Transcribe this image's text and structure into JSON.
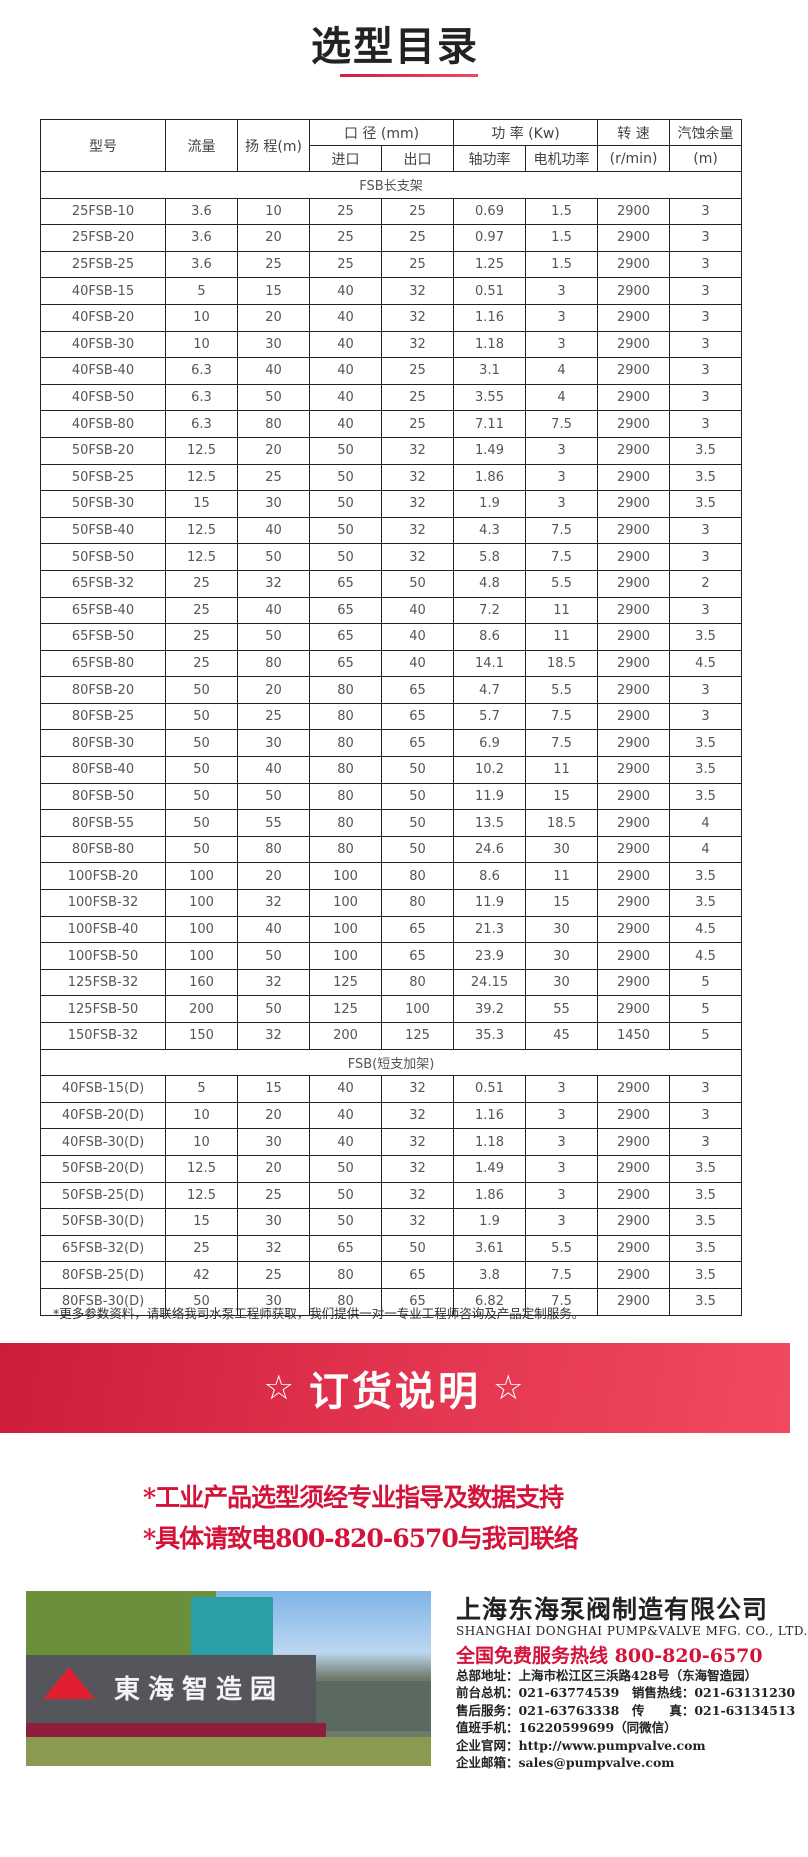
{
  "title": "选型目录",
  "table": {
    "headers": {
      "model": "型号",
      "flow": "流量",
      "head": "扬 程(m)",
      "diameter": "口 径 (mm)",
      "power": "功 率 (Kw)",
      "speed": "转 速",
      "npsh": "汽蚀余量",
      "inlet": "进口",
      "outlet": "出口",
      "shaft": "轴功率",
      "motor": "电机功率",
      "speed_unit": "(r/min)",
      "npsh_unit": "(m)"
    },
    "groups": [
      {
        "name": "FSB长支架",
        "rows": [
          [
            "25FSB-10",
            "3.6",
            "10",
            "25",
            "25",
            "0.69",
            "1.5",
            "2900",
            "3"
          ],
          [
            "25FSB-20",
            "3.6",
            "20",
            "25",
            "25",
            "0.97",
            "1.5",
            "2900",
            "3"
          ],
          [
            "25FSB-25",
            "3.6",
            "25",
            "25",
            "25",
            "1.25",
            "1.5",
            "2900",
            "3"
          ],
          [
            "40FSB-15",
            "5",
            "15",
            "40",
            "32",
            "0.51",
            "3",
            "2900",
            "3"
          ],
          [
            "40FSB-20",
            "10",
            "20",
            "40",
            "32",
            "1.16",
            "3",
            "2900",
            "3"
          ],
          [
            "40FSB-30",
            "10",
            "30",
            "40",
            "32",
            "1.18",
            "3",
            "2900",
            "3"
          ],
          [
            "40FSB-40",
            "6.3",
            "40",
            "40",
            "25",
            "3.1",
            "4",
            "2900",
            "3"
          ],
          [
            "40FSB-50",
            "6.3",
            "50",
            "40",
            "25",
            "3.55",
            "4",
            "2900",
            "3"
          ],
          [
            "40FSB-80",
            "6.3",
            "80",
            "40",
            "25",
            "7.11",
            "7.5",
            "2900",
            "3"
          ],
          [
            "50FSB-20",
            "12.5",
            "20",
            "50",
            "32",
            "1.49",
            "3",
            "2900",
            "3.5"
          ],
          [
            "50FSB-25",
            "12.5",
            "25",
            "50",
            "32",
            "1.86",
            "3",
            "2900",
            "3.5"
          ],
          [
            "50FSB-30",
            "15",
            "30",
            "50",
            "32",
            "1.9",
            "3",
            "2900",
            "3.5"
          ],
          [
            "50FSB-40",
            "12.5",
            "40",
            "50",
            "32",
            "4.3",
            "7.5",
            "2900",
            "3"
          ],
          [
            "50FSB-50",
            "12.5",
            "50",
            "50",
            "32",
            "5.8",
            "7.5",
            "2900",
            "3"
          ],
          [
            "65FSB-32",
            "25",
            "32",
            "65",
            "50",
            "4.8",
            "5.5",
            "2900",
            "2"
          ],
          [
            "65FSB-40",
            "25",
            "40",
            "65",
            "40",
            "7.2",
            "11",
            "2900",
            "3"
          ],
          [
            "65FSB-50",
            "25",
            "50",
            "65",
            "40",
            "8.6",
            "11",
            "2900",
            "3.5"
          ],
          [
            "65FSB-80",
            "25",
            "80",
            "65",
            "40",
            "14.1",
            "18.5",
            "2900",
            "4.5"
          ],
          [
            "80FSB-20",
            "50",
            "20",
            "80",
            "65",
            "4.7",
            "5.5",
            "2900",
            "3"
          ],
          [
            "80FSB-25",
            "50",
            "25",
            "80",
            "65",
            "5.7",
            "7.5",
            "2900",
            "3"
          ],
          [
            "80FSB-30",
            "50",
            "30",
            "80",
            "65",
            "6.9",
            "7.5",
            "2900",
            "3.5"
          ],
          [
            "80FSB-40",
            "50",
            "40",
            "80",
            "50",
            "10.2",
            "11",
            "2900",
            "3.5"
          ],
          [
            "80FSB-50",
            "50",
            "50",
            "80",
            "50",
            "11.9",
            "15",
            "2900",
            "3.5"
          ],
          [
            "80FSB-55",
            "50",
            "55",
            "80",
            "50",
            "13.5",
            "18.5",
            "2900",
            "4"
          ],
          [
            "80FSB-80",
            "50",
            "80",
            "80",
            "50",
            "24.6",
            "30",
            "2900",
            "4"
          ],
          [
            "100FSB-20",
            "100",
            "20",
            "100",
            "80",
            "8.6",
            "11",
            "2900",
            "3.5"
          ],
          [
            "100FSB-32",
            "100",
            "32",
            "100",
            "80",
            "11.9",
            "15",
            "2900",
            "3.5"
          ],
          [
            "100FSB-40",
            "100",
            "40",
            "100",
            "65",
            "21.3",
            "30",
            "2900",
            "4.5"
          ],
          [
            "100FSB-50",
            "100",
            "50",
            "100",
            "65",
            "23.9",
            "30",
            "2900",
            "4.5"
          ],
          [
            "125FSB-32",
            "160",
            "32",
            "125",
            "80",
            "24.15",
            "30",
            "2900",
            "5"
          ],
          [
            "125FSB-50",
            "200",
            "50",
            "125",
            "100",
            "39.2",
            "55",
            "2900",
            "5"
          ],
          [
            "150FSB-32",
            "150",
            "32",
            "200",
            "125",
            "35.3",
            "45",
            "1450",
            "5"
          ]
        ]
      },
      {
        "name": "FSB(短支加架)",
        "rows": [
          [
            "40FSB-15(D)",
            "5",
            "15",
            "40",
            "32",
            "0.51",
            "3",
            "2900",
            "3"
          ],
          [
            "40FSB-20(D)",
            "10",
            "20",
            "40",
            "32",
            "1.16",
            "3",
            "2900",
            "3"
          ],
          [
            "40FSB-30(D)",
            "10",
            "30",
            "40",
            "32",
            "1.18",
            "3",
            "2900",
            "3"
          ],
          [
            "50FSB-20(D)",
            "12.5",
            "20",
            "50",
            "32",
            "1.49",
            "3",
            "2900",
            "3.5"
          ],
          [
            "50FSB-25(D)",
            "12.5",
            "25",
            "50",
            "32",
            "1.86",
            "3",
            "2900",
            "3.5"
          ],
          [
            "50FSB-30(D)",
            "15",
            "30",
            "50",
            "32",
            "1.9",
            "3",
            "2900",
            "3.5"
          ],
          [
            "65FSB-32(D)",
            "25",
            "32",
            "65",
            "50",
            "3.61",
            "5.5",
            "2900",
            "3.5"
          ],
          [
            "80FSB-25(D)",
            "42",
            "25",
            "80",
            "65",
            "3.8",
            "7.5",
            "2900",
            "3.5"
          ],
          [
            "80FSB-30(D)",
            "50",
            "30",
            "80",
            "65",
            "6.82",
            "7.5",
            "2900",
            "3.5"
          ]
        ]
      }
    ]
  },
  "note": "*更多参数资料，请联络我司水泵工程师获取，我们提供一对一专业工程师咨询及产品定制服务。",
  "banner": {
    "star": "☆",
    "text": "订货说明"
  },
  "notices": [
    "*工业产品选型须经专业指导及数据支持",
    "*具体请致电800-820-6570与我司联络"
  ],
  "photo": {
    "sign": "東海智造园"
  },
  "company": {
    "name": "上海东海泵阀制造有限公司",
    "name_en": "SHANGHAI DONGHAI PUMP&VALVE MFG. CO., LTD.",
    "hotline_label": "全国免费服务热线",
    "hotline": "800-820-6570",
    "lines": [
      "总部地址：上海市松江区三浜路428号（东海智造园）",
      "前台总机：021-63774539　销售热线：021-63131230",
      "售后服务：021-63763338　传　　真：021-63134513",
      "值班手机：16220599699（同微信）",
      "企业官网：http://www.pumpvalve.com",
      "企业邮箱：sales@pumpvalve.com"
    ]
  },
  "colors": {
    "accent": "#d4133a",
    "banner": "#e2344f"
  }
}
